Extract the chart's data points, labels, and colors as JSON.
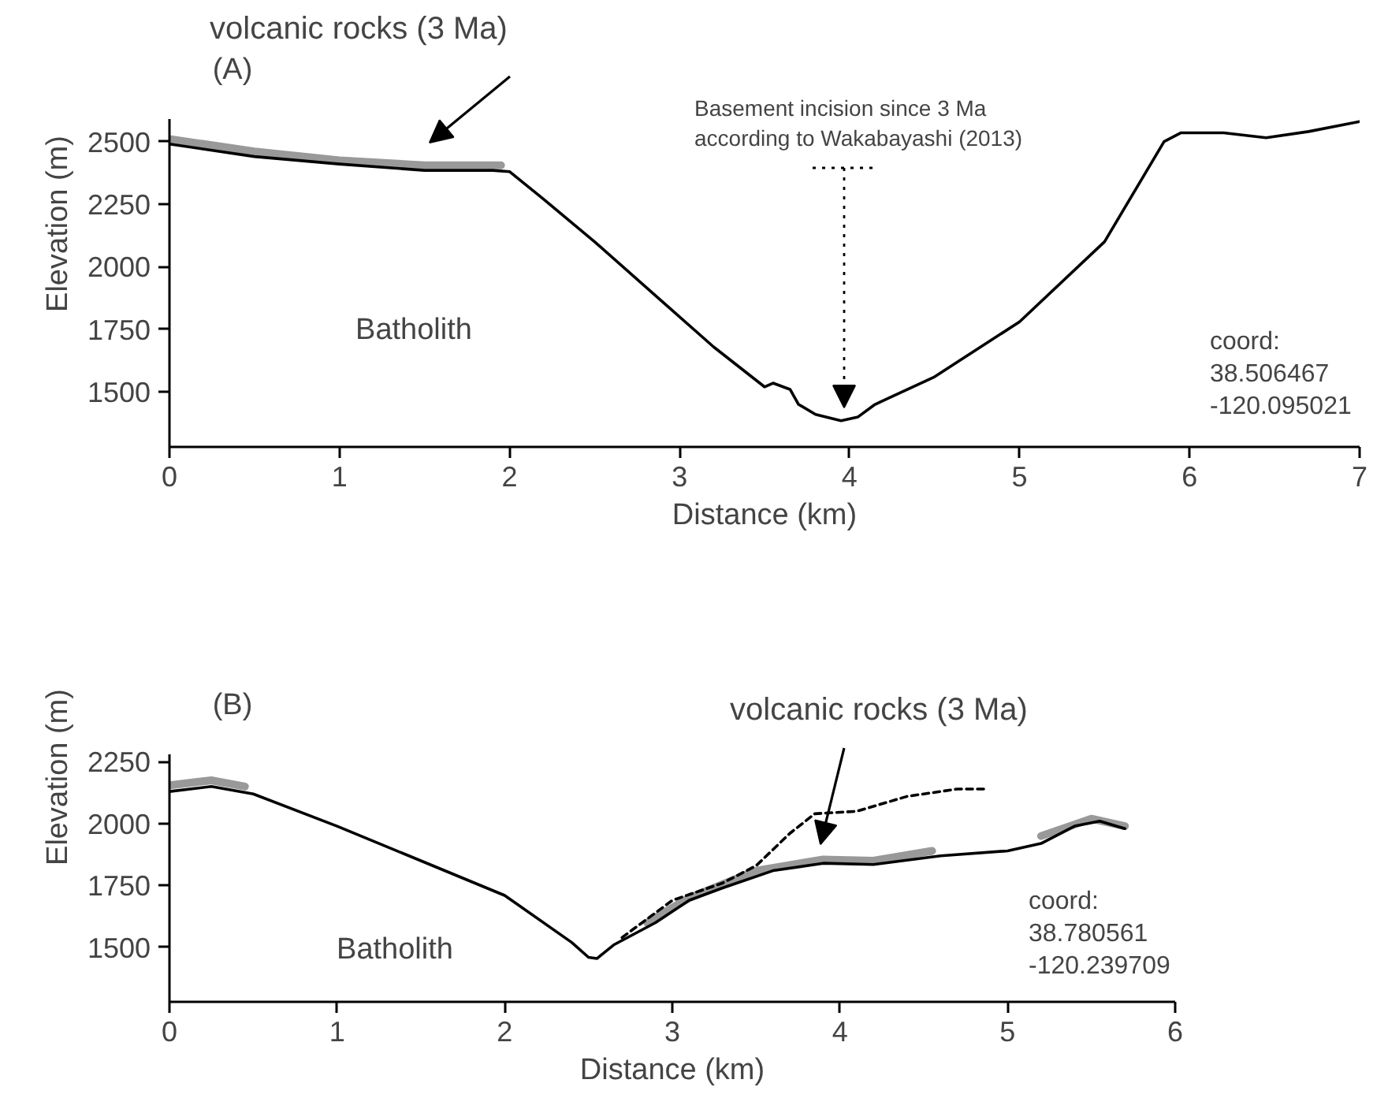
{
  "chart_data": [
    {
      "type": "line",
      "title": "(A)",
      "xlabel": "Distance (km)",
      "ylabel": "Elevation (m)",
      "xlim": [
        0,
        7
      ],
      "ylim": [
        1280,
        2590
      ],
      "xticks": [
        0,
        1,
        2,
        3,
        4,
        5,
        6,
        7
      ],
      "yticks": [
        1500,
        1750,
        2000,
        2250,
        2500
      ],
      "grid": false,
      "series": [
        {
          "color": "#999999",
          "line_style": "solid",
          "x": [
            0,
            0.5,
            1,
            1.5,
            1.95
          ],
          "values": [
            2510,
            2460,
            2425,
            2405,
            2405
          ]
        },
        {
          "color": "#000000",
          "line_style": "solid",
          "x": [
            0,
            0.5,
            1,
            1.5,
            1.9,
            2.0,
            2.2,
            2.5,
            2.9,
            3.2,
            3.5,
            3.55,
            3.65,
            3.7,
            3.8,
            3.95,
            4.05,
            4.15,
            4.5,
            5,
            5.5,
            5.85,
            5.95,
            6.2,
            6.45,
            6.7,
            7
          ],
          "values": [
            2490,
            2440,
            2410,
            2385,
            2385,
            2380,
            2270,
            2100,
            1860,
            1680,
            1520,
            1535,
            1510,
            1450,
            1410,
            1385,
            1400,
            1450,
            1560,
            1780,
            2100,
            2500,
            2535,
            2535,
            2515,
            2540,
            2580
          ]
        }
      ],
      "annotations": [
        "volcanic rocks (3 Ma)",
        "Basement incision since 3 Ma\naccording to Wakabayashi (2013)",
        "Batholith",
        "coord:\n38.506467\n-120.095021"
      ]
    },
    {
      "type": "line",
      "title": "(B)",
      "xlabel": "Distance (km)",
      "ylabel": "Elevation (m)",
      "xlim": [
        0,
        6
      ],
      "ylim": [
        1280,
        2280
      ],
      "xticks": [
        0,
        1,
        2,
        3,
        4,
        5,
        6
      ],
      "yticks": [
        1500,
        1750,
        2000,
        2250
      ],
      "grid": false,
      "series": [
        {
          "color": "#999999",
          "line_style": "solid",
          "x": [
            0,
            0.25,
            0.45,
            0.46,
            2.85,
            3.1,
            3.5,
            3.9,
            4.2,
            4.55,
            4.56,
            5.2,
            5.5,
            5.7
          ],
          "values": [
            2155,
            2175,
            2150,
            null,
            1600,
            1700,
            1810,
            1855,
            1850,
            1890,
            null,
            1950,
            2020,
            1990
          ]
        },
        {
          "color": "#000000",
          "line_style": "solid",
          "x": [
            0,
            0.25,
            0.5,
            1,
            1.5,
            2,
            2.4,
            2.5,
            2.55,
            2.65,
            2.9,
            3.1,
            3.3,
            3.6,
            3.9,
            4.2,
            4.6,
            5,
            5.2,
            5.4,
            5.55,
            5.7
          ],
          "values": [
            2130,
            2150,
            2120,
            1990,
            1850,
            1710,
            1520,
            1460,
            1455,
            1510,
            1600,
            1690,
            1740,
            1810,
            1840,
            1835,
            1870,
            1890,
            1920,
            1990,
            2010,
            1980
          ]
        },
        {
          "color": "#000000",
          "line_style": "dashed",
          "x": [
            2.7,
            3.0,
            3.3,
            3.5,
            3.7,
            3.85,
            4.1,
            4.4,
            4.7,
            4.87
          ],
          "values": [
            1540,
            1690,
            1760,
            1830,
            1960,
            2040,
            2050,
            2110,
            2140,
            2140
          ]
        }
      ],
      "annotations": [
        "volcanic rocks (3 Ma)",
        "Batholith",
        "coord:\n38.780561\n-120.239709"
      ]
    }
  ]
}
